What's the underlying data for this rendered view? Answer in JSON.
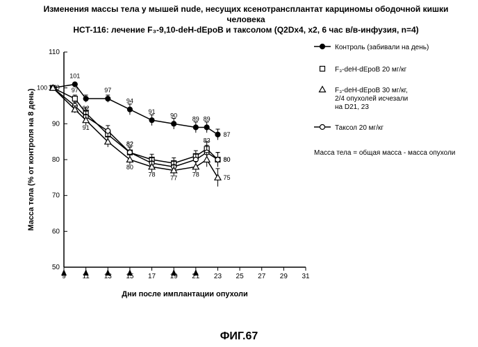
{
  "title_line1": "Изменения массы тела у мышей nude, несущих ксенотрансплантат карциномы ободочной кишки человека",
  "title_line2": "HCT-116: лечение F₃-9,10-deH-dEpoB и таксолом (Q2Dx4, x2, 6 час в/в-инфузия, n=4)",
  "figure_label": "ФИГ.67",
  "chart": {
    "type": "line",
    "xlabel": "Дни после имплантации опухоли",
    "ylabel": "Масса тела (% от контроля на 8 день)",
    "xlim": [
      9,
      31
    ],
    "ylim": [
      50,
      110
    ],
    "xtick_step": 2,
    "ytick_step": 10,
    "title_fontsize": 12,
    "label_fontsize": 11,
    "tick_fontsize": 10,
    "data_label_fontsize": 9,
    "legend_fontsize": 10,
    "background_color": "#ffffff",
    "axis_color": "#000000",
    "tick_color": "#000000",
    "series_color": "#000000",
    "line_width": 1.5,
    "marker_size": 5,
    "ytick_inside": true,
    "arrow_days": [
      9,
      11,
      13,
      15,
      19,
      21
    ],
    "series": {
      "control": {
        "label": "Контроль (забивали на день)",
        "marker": "filled-circle",
        "fill": "#000000",
        "stroke": "#000000",
        "x": [
          8,
          10,
          11,
          13,
          15,
          17,
          19,
          21,
          22,
          23
        ],
        "y": [
          100,
          101,
          97,
          97,
          94,
          91,
          90,
          89,
          89,
          87
        ],
        "labels": [
          100,
          101,
          null,
          97,
          94,
          91,
          90,
          89,
          89,
          87
        ],
        "label_pos": [
          "left",
          "above",
          "above",
          "above",
          "above",
          "above",
          "above",
          "above",
          "above",
          "right"
        ],
        "err": [
          0,
          0,
          1,
          1,
          1.5,
          1.5,
          1.5,
          1.5,
          1.5,
          1.5
        ]
      },
      "f3_20": {
        "label": "F₃-deH-dEpoB 20 мг/кг",
        "marker": "open-square",
        "fill": "#ffffff",
        "stroke": "#000000",
        "x": [
          8,
          10,
          11,
          13,
          15,
          17,
          19,
          21,
          22,
          23
        ],
        "y": [
          100,
          97,
          93,
          87,
          82,
          80,
          79,
          81,
          83,
          80
        ],
        "labels": [
          null,
          97,
          null,
          null,
          82,
          null,
          null,
          null,
          83,
          80
        ],
        "label_pos": [
          "",
          "above",
          "",
          "",
          "above",
          "",
          "",
          "",
          "above",
          "right"
        ],
        "err": [
          0,
          1,
          1.5,
          1.5,
          1.5,
          1.5,
          1.5,
          1.5,
          2,
          2
        ]
      },
      "f3_30": {
        "label_line1": "F₃-deH-dEpoB 30 мг/кг,",
        "label_line2": "2/4 опухолей исчезали",
        "label_line3": "на D21, 23",
        "marker": "open-triangle",
        "fill": "#ffffff",
        "stroke": "#000000",
        "x": [
          8,
          10,
          11,
          13,
          15,
          17,
          19,
          21,
          22,
          23
        ],
        "y": [
          100,
          94,
          91,
          85,
          80,
          78,
          77,
          78,
          80,
          75
        ],
        "labels": [
          null,
          null,
          91,
          null,
          80,
          78,
          77,
          78,
          null,
          75
        ],
        "label_pos": [
          "",
          "",
          "below",
          "",
          "below",
          "below",
          "below",
          "below",
          "",
          "right"
        ],
        "err": [
          0,
          1,
          1.5,
          1.5,
          1.5,
          1.5,
          1.5,
          1.5,
          2,
          2.5
        ]
      },
      "taxol": {
        "label": "Таксол 20 мг/кг",
        "marker": "open-circle",
        "fill": "#ffffff",
        "stroke": "#000000",
        "x": [
          8,
          10,
          11,
          13,
          15,
          17,
          19,
          21,
          22,
          23
        ],
        "y": [
          100,
          95,
          92,
          88,
          82,
          79,
          78,
          80,
          82,
          80
        ],
        "labels": [
          null,
          null,
          92,
          null,
          82,
          null,
          null,
          null,
          null,
          80
        ],
        "label_pos": [
          "",
          "",
          "above",
          "",
          "above",
          "",
          "",
          "",
          "",
          "right"
        ],
        "err": [
          0,
          1,
          1.5,
          1.5,
          1.5,
          1.5,
          1.5,
          1.5,
          2,
          2
        ]
      }
    },
    "legend_note": "Масса тела = общая масса - масса опухоли"
  }
}
